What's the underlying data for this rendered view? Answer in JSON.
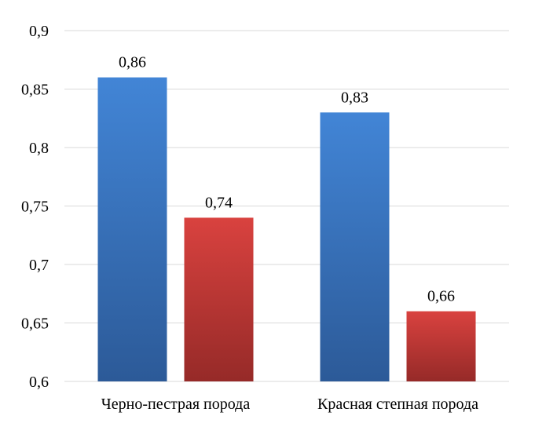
{
  "chart_data": {
    "type": "bar",
    "title": "",
    "xlabel": "",
    "ylabel": "",
    "categories": [
      "Черно-пестрая порода",
      "Красная степная порода"
    ],
    "series": [
      {
        "color_top": "#4285d6",
        "color_bottom": "#2c5a98",
        "values": [
          0.86,
          0.83
        ],
        "labels": [
          "0,86",
          "0,83"
        ]
      },
      {
        "color_top": "#d9423f",
        "color_bottom": "#962a28",
        "values": [
          0.74,
          0.66
        ],
        "labels": [
          "0,74",
          "0,66"
        ]
      }
    ],
    "ylim": [
      0.6,
      0.9
    ],
    "yticks": [
      0.6,
      0.65,
      0.7,
      0.75,
      0.8,
      0.85,
      0.9
    ],
    "ytick_labels": [
      "0,6",
      "0,65",
      "0,7",
      "0,75",
      "0,8",
      "0,85",
      "0,9"
    ],
    "grid": true,
    "legend": "none"
  }
}
